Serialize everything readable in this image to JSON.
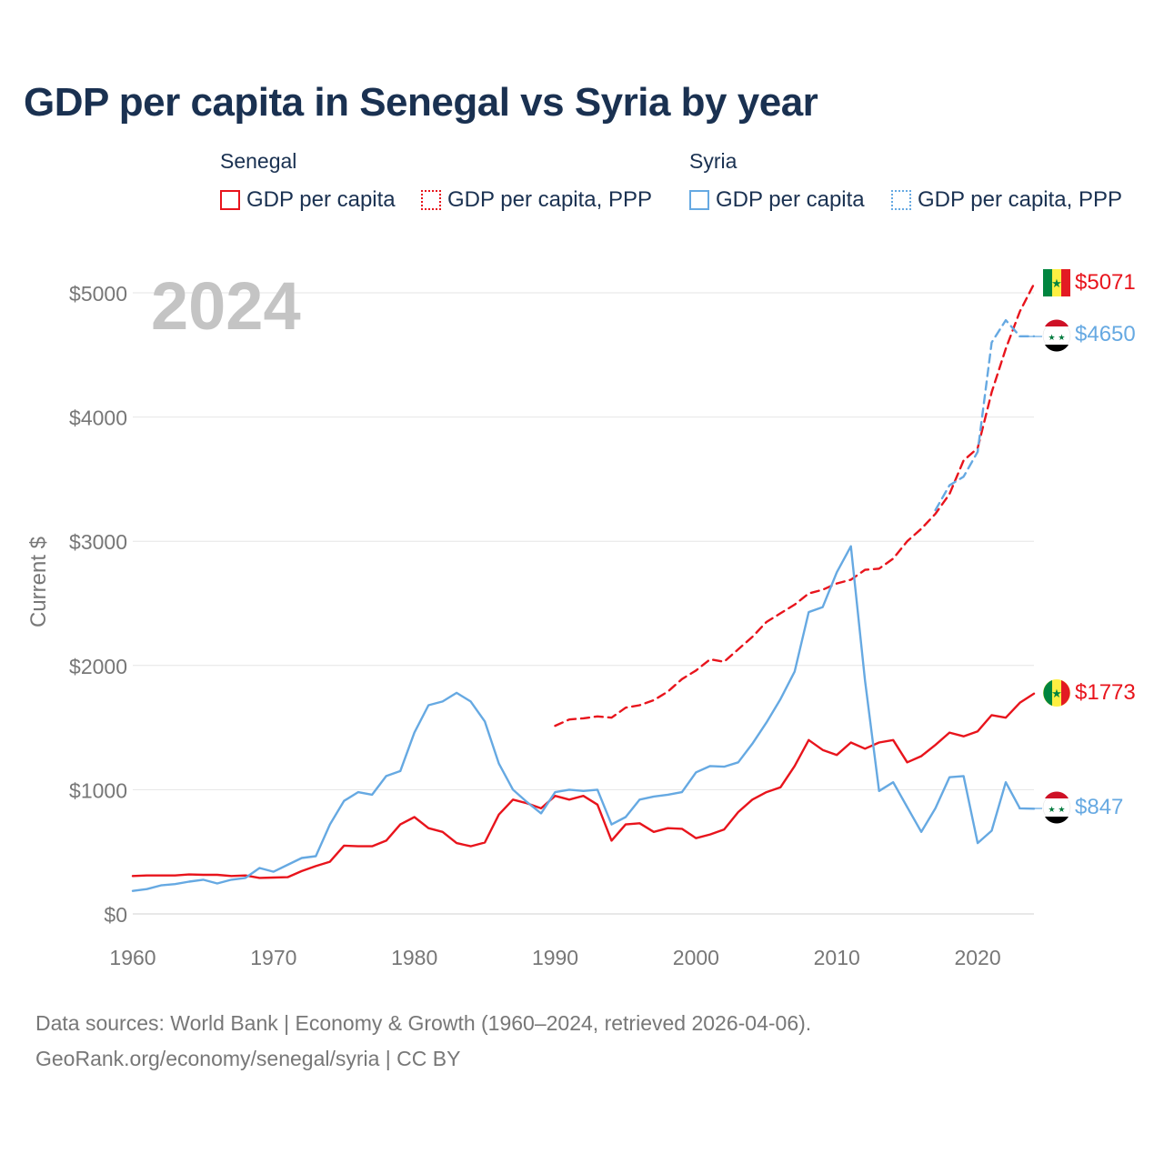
{
  "title": "GDP per capita in Senegal vs Syria by year",
  "legend": {
    "senegal": {
      "group": "Senegal",
      "gdp": "GDP per capita",
      "ppp": "GDP per capita, PPP",
      "color": "#e8141c"
    },
    "syria": {
      "group": "Syria",
      "gdp": "GDP per capita",
      "ppp": "GDP per capita, PPP",
      "color": "#66a9e2"
    }
  },
  "year_watermark": "2024",
  "end_labels": {
    "senegal_ppp": "$5071",
    "syria_ppp": "$4650",
    "senegal_gdp": "$1773",
    "syria_gdp": "$847"
  },
  "footer": {
    "line1": "Data sources: World Bank | Economy & Growth (1960–2024, retrieved 2026-04-06).",
    "line2": "GeoRank.org/economy/senegal/syria | CC BY"
  },
  "chart_data": {
    "type": "line",
    "title": "GDP per capita in Senegal vs Syria by year",
    "xlabel": "",
    "ylabel": "Current $",
    "xlim": [
      1960,
      2024
    ],
    "ylim": [
      0,
      5200
    ],
    "x_ticks": [
      1960,
      1970,
      1980,
      1990,
      2000,
      2010,
      2020
    ],
    "y_ticks": [
      0,
      1000,
      2000,
      3000,
      4000,
      5000
    ],
    "y_tick_labels": [
      "$0",
      "$1000",
      "$2000",
      "$3000",
      "$4000",
      "$5000"
    ],
    "grid": true,
    "series": [
      {
        "name": "Senegal GDP per capita",
        "key": "senegal_gdp",
        "color": "#e8141c",
        "dash": "solid",
        "x": [
          1960,
          1961,
          1962,
          1963,
          1964,
          1965,
          1966,
          1967,
          1968,
          1969,
          1970,
          1971,
          1972,
          1973,
          1974,
          1975,
          1976,
          1977,
          1978,
          1979,
          1980,
          1981,
          1982,
          1983,
          1984,
          1985,
          1986,
          1987,
          1988,
          1989,
          1990,
          1991,
          1992,
          1993,
          1994,
          1995,
          1996,
          1997,
          1998,
          1999,
          2000,
          2001,
          2002,
          2003,
          2004,
          2005,
          2006,
          2007,
          2008,
          2009,
          2010,
          2011,
          2012,
          2013,
          2014,
          2015,
          2016,
          2017,
          2018,
          2019,
          2020,
          2021,
          2022,
          2023,
          2024
        ],
        "values": [
          305,
          310,
          310,
          310,
          318,
          315,
          315,
          305,
          310,
          290,
          293,
          296,
          345,
          385,
          420,
          550,
          545,
          545,
          590,
          720,
          780,
          690,
          660,
          570,
          545,
          575,
          800,
          920,
          890,
          850,
          950,
          920,
          950,
          880,
          590,
          720,
          730,
          660,
          690,
          685,
          610,
          640,
          680,
          820,
          920,
          980,
          1020,
          1190,
          1400,
          1320,
          1280,
          1380,
          1330,
          1380,
          1400,
          1220,
          1270,
          1360,
          1460,
          1430,
          1470,
          1600,
          1580,
          1700,
          1773
        ]
      },
      {
        "name": "Senegal GDP per capita, PPP",
        "key": "senegal_ppp",
        "color": "#e8141c",
        "dash": "dashed",
        "x": [
          1990,
          1991,
          1992,
          1993,
          1994,
          1995,
          1996,
          1997,
          1998,
          1999,
          2000,
          2001,
          2002,
          2003,
          2004,
          2005,
          2006,
          2007,
          2008,
          2009,
          2010,
          2011,
          2012,
          2013,
          2014,
          2015,
          2016,
          2017,
          2018,
          2019,
          2020,
          2021,
          2022,
          2023,
          2024
        ],
        "values": [
          1515,
          1565,
          1575,
          1590,
          1580,
          1660,
          1680,
          1720,
          1790,
          1890,
          1960,
          2050,
          2030,
          2130,
          2230,
          2350,
          2420,
          2490,
          2580,
          2610,
          2660,
          2690,
          2770,
          2780,
          2860,
          3000,
          3100,
          3220,
          3380,
          3650,
          3750,
          4200,
          4550,
          4850,
          5071
        ]
      },
      {
        "name": "Syria GDP per capita",
        "key": "syria_gdp",
        "color": "#66a9e2",
        "dash": "solid",
        "x": [
          1960,
          1961,
          1962,
          1963,
          1964,
          1965,
          1966,
          1967,
          1968,
          1969,
          1970,
          1971,
          1972,
          1973,
          1974,
          1975,
          1976,
          1977,
          1978,
          1979,
          1980,
          1981,
          1982,
          1983,
          1984,
          1985,
          1986,
          1987,
          1988,
          1989,
          1990,
          1991,
          1992,
          1993,
          1994,
          1995,
          1996,
          1997,
          1998,
          1999,
          2000,
          2001,
          2002,
          2003,
          2004,
          2005,
          2006,
          2007,
          2008,
          2009,
          2010,
          2011,
          2012,
          2013,
          2014,
          2015,
          2016,
          2017,
          2018,
          2019,
          2020,
          2021,
          2022,
          2023,
          2024
        ],
        "values": [
          185,
          200,
          230,
          240,
          260,
          275,
          245,
          275,
          290,
          370,
          340,
          395,
          450,
          465,
          720,
          910,
          980,
          960,
          1110,
          1150,
          1460,
          1680,
          1710,
          1780,
          1710,
          1550,
          1210,
          1000,
          900,
          810,
          980,
          1000,
          990,
          1000,
          720,
          780,
          920,
          945,
          960,
          980,
          1140,
          1190,
          1185,
          1220,
          1370,
          1540,
          1730,
          1950,
          2430,
          2470,
          2750,
          2960,
          1880,
          990,
          1060,
          860,
          660,
          850,
          1100,
          1110,
          570,
          670,
          1060,
          850,
          847
        ]
      },
      {
        "name": "Syria GDP per capita, PPP",
        "key": "syria_ppp",
        "color": "#66a9e2",
        "dash": "dashed",
        "x": [
          2017,
          2018,
          2019,
          2020,
          2021,
          2022,
          2023,
          2024
        ],
        "values": [
          3250,
          3450,
          3520,
          3720,
          4600,
          4780,
          4650,
          4650
        ]
      }
    ]
  }
}
